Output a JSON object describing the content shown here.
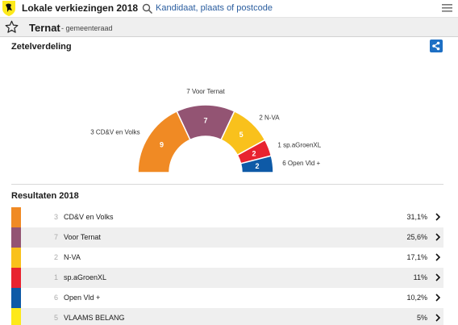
{
  "header": {
    "title": "Lokale verkiezingen 2018",
    "search_placeholder": "Kandidaat, plaats of postcode",
    "logo_icon": "lion-shield-icon",
    "search_icon": "search-icon",
    "menu_icon": "hamburger-menu-icon"
  },
  "subheader": {
    "place": "Ternat",
    "type": "- gemeenteraad",
    "favorite_icon": "star-outline-icon"
  },
  "seats": {
    "title": "Zetelverdeling",
    "share_icon": "share-icon"
  },
  "results": {
    "title": "Resultaten 2018",
    "rows": [
      {
        "seats": "3",
        "party": "CD&V en Volks",
        "pct": "31,1%",
        "color": "#f08a24"
      },
      {
        "seats": "7",
        "party": "Voor Ternat",
        "pct": "25,6%",
        "color": "#935473"
      },
      {
        "seats": "2",
        "party": "N-VA",
        "pct": "17,1%",
        "color": "#f9c11c"
      },
      {
        "seats": "1",
        "party": "sp.aGroenXL",
        "pct": "11%",
        "color": "#e8232f"
      },
      {
        "seats": "6",
        "party": "Open Vld +",
        "pct": "10,2%",
        "color": "#0e5aa7"
      },
      {
        "seats": "5",
        "party": "VLAAMS BELANG",
        "pct": "5%",
        "color": "#fde91a"
      }
    ]
  },
  "chart_data": {
    "type": "pie",
    "variant": "half-donut",
    "slices": [
      {
        "label": "3 CD&V en Volks",
        "value": 9,
        "color": "#f08a24"
      },
      {
        "label": "7 Voor Ternat",
        "value": 7,
        "color": "#935473"
      },
      {
        "label": "2 N-VA",
        "value": 5,
        "color": "#f9c11c"
      },
      {
        "label": "1 sp.aGroenXL",
        "value": 2,
        "color": "#e8232f"
      },
      {
        "label": "6 Open Vld +",
        "value": 2,
        "color": "#0e5aa7"
      }
    ]
  }
}
